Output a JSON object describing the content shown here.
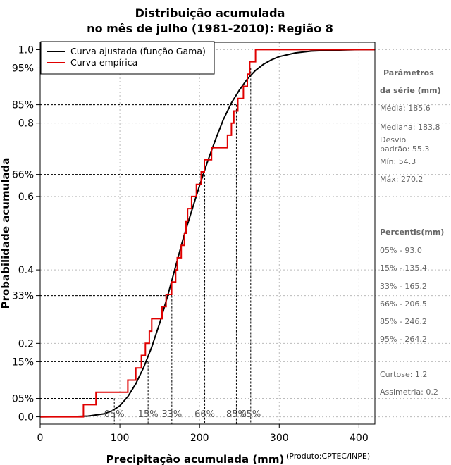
{
  "chart_data": {
    "type": "line",
    "title": [
      "Distribuição acumulada",
      "no mês de julho (1981-2010): Região 8"
    ],
    "xlabel": "Precipitação acumulada (mm)",
    "ylabel": "Probabilidade acumulada",
    "credit": "(Produto:CPTEC/INPE)",
    "xlim": [
      0,
      420
    ],
    "ylim": [
      -0.02,
      1.02
    ],
    "x_ticks": [
      0,
      100,
      200,
      300,
      400
    ],
    "y_ticks": [
      {
        "value": 0.0,
        "label": "0.0"
      },
      {
        "value": 0.05,
        "label": "05%"
      },
      {
        "value": 0.15,
        "label": "15%"
      },
      {
        "value": 0.2,
        "label": "0.2"
      },
      {
        "value": 0.33,
        "label": "33%"
      },
      {
        "value": 0.4,
        "label": "0.4"
      },
      {
        "value": 0.6,
        "label": "0.6"
      },
      {
        "value": 0.66,
        "label": "66%"
      },
      {
        "value": 0.8,
        "label": "0.8"
      },
      {
        "value": 0.85,
        "label": "85%"
      },
      {
        "value": 0.95,
        "label": "95%"
      },
      {
        "value": 1.0,
        "label": "1.0"
      }
    ],
    "grid": true,
    "legend": {
      "placement": "top-left",
      "items": [
        {
          "label": "Curva ajustada (função Gama)",
          "color": "#000000"
        },
        {
          "label": "Curva empírica",
          "color": "#e00000"
        }
      ]
    },
    "percentile_markers": [
      {
        "label": "05%",
        "p": 0.05,
        "x": 93.0
      },
      {
        "label": "15%",
        "p": 0.15,
        "x": 135.4
      },
      {
        "label": "33%",
        "p": 0.33,
        "x": 165.2
      },
      {
        "label": "66%",
        "p": 0.66,
        "x": 206.5
      },
      {
        "label": "85%",
        "p": 0.85,
        "x": 246.2
      },
      {
        "label": "95%",
        "p": 0.95,
        "x": 264.2
      }
    ],
    "series": [
      {
        "name": "Curva ajustada (função Gama)",
        "color": "#000000",
        "x": [
          0,
          40,
          60,
          80,
          90,
          100,
          110,
          120,
          130,
          140,
          150,
          160,
          170,
          180,
          190,
          200,
          210,
          220,
          230,
          240,
          250,
          260,
          270,
          280,
          290,
          300,
          320,
          340,
          360,
          380,
          400,
          420
        ],
        "y": [
          0.0,
          0.0005,
          0.002,
          0.008,
          0.016,
          0.03,
          0.055,
          0.09,
          0.135,
          0.19,
          0.255,
          0.33,
          0.41,
          0.49,
          0.56,
          0.63,
          0.695,
          0.755,
          0.81,
          0.855,
          0.89,
          0.92,
          0.943,
          0.96,
          0.972,
          0.981,
          0.991,
          0.996,
          0.998,
          0.999,
          1.0,
          1.0
        ]
      },
      {
        "name": "Curva empírica",
        "color": "#e00000",
        "step_x": [
          0,
          54.3,
          70,
          110,
          120,
          127,
          132,
          137,
          140,
          153,
          158,
          165,
          170,
          172,
          177,
          181,
          183,
          185,
          190,
          193,
          196,
          202,
          206,
          208,
          215,
          235,
          240,
          243,
          248,
          250,
          255,
          260,
          263,
          268,
          270.2,
          420
        ],
        "step_y": [
          0.0,
          0.033,
          0.067,
          0.1,
          0.133,
          0.167,
          0.2,
          0.233,
          0.267,
          0.3,
          0.333,
          0.367,
          0.4,
          0.433,
          0.467,
          0.5,
          0.533,
          0.567,
          0.6,
          0.6,
          0.633,
          0.667,
          0.7,
          0.7,
          0.733,
          0.767,
          0.8,
          0.833,
          0.867,
          0.867,
          0.9,
          0.933,
          0.967,
          0.967,
          1.0,
          1.0
        ]
      }
    ]
  },
  "side_panel": {
    "params_title_1": "Parâmetros",
    "params_title_2": "da série (mm)",
    "media": "Média: 185.6",
    "mediana": "Mediana: 183.8",
    "desvio_1": "Desvio",
    "desvio_2": "padrão: 55.3",
    "min": "Mín: 54.3",
    "max": "Máx: 270.2",
    "percentis_title": "Percentis(mm)",
    "percentis": [
      "05% - 93.0",
      "15% - 135.4",
      "33% - 165.2",
      "66% - 206.5",
      "85% - 246.2",
      "95% - 264.2"
    ],
    "curtose": "Curtose: 1.2",
    "assimetria": "Assimetria: 0.2"
  }
}
